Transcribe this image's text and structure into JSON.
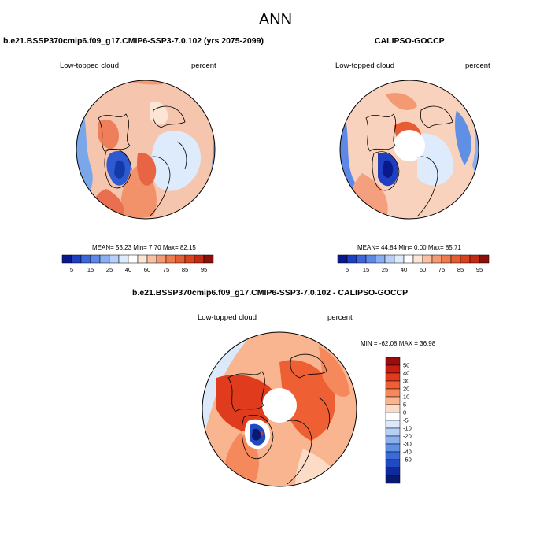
{
  "page_title": "ANN",
  "panels": {
    "model": {
      "title": "b.e21.BSSP370cmip6.f09_g17.CMIP6-SSP3-7.0.102 (yrs 2075-2099)",
      "variable": "Low-topped cloud",
      "units": "percent",
      "stats": "MEAN= 53.23  Min=   7.70  Max=  82.15"
    },
    "obs": {
      "title": "CALIPSO-GOCCP",
      "variable": "Low-topped cloud",
      "units": "percent",
      "stats": "MEAN= 44.84  Min=   0.00  Max=  85.71"
    },
    "diff": {
      "title": "b.e21.BSSP370cmip6.f09_g17.CMIP6-SSP3-7.0.102 - CALIPSO-GOCCP",
      "variable": "Low-topped cloud",
      "units": "percent",
      "stats": "MIN = -62.08 MAX =  36.98"
    }
  },
  "colorbar_main": {
    "labels": [
      "5",
      "15",
      "25",
      "40",
      "60",
      "75",
      "85",
      "95"
    ],
    "colors": [
      "#0a1a8c",
      "#1f3fc2",
      "#3d66db",
      "#5e88e6",
      "#8aaeef",
      "#b8d0f7",
      "#deebfc",
      "#ffffff",
      "#fde5d6",
      "#f9c0a2",
      "#f49a73",
      "#ee7a4e",
      "#e65c33",
      "#d8421e",
      "#c22a12",
      "#8b0f0a"
    ]
  },
  "colorbar_diff": {
    "labels": [
      "50",
      "40",
      "30",
      "20",
      "10",
      "5",
      "0",
      "-5",
      "-10",
      "-20",
      "-30",
      "-40",
      "-50"
    ],
    "colors": [
      "#9b0d0d",
      "#c81e0f",
      "#e03b1c",
      "#ee5f33",
      "#f5895c",
      "#f9b590",
      "#fcdcc6",
      "#ffffff",
      "#dce9fb",
      "#b5cff5",
      "#8cb0ee",
      "#6090e4",
      "#3b6bd8",
      "#2149c2",
      "#0f2b9e",
      "#081a70"
    ]
  }
}
